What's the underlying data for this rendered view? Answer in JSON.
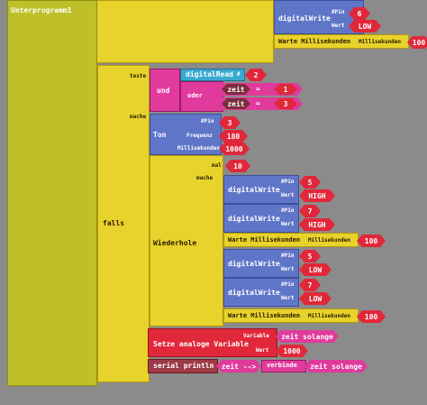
{
  "labels": {
    "unterprogramm": "Unterprogramm1",
    "falls": "falls",
    "teste": "teste",
    "mache": "mache",
    "und": "und",
    "oder": "oder",
    "digital_read": "digitalRead",
    "digital_read_hash": "#",
    "ton": "Ton",
    "pin": "#Pin",
    "frequenz": "Frequenz",
    "millisekunden": "Millisekunden",
    "mal": "mal",
    "wiederhole": "Wiederhole",
    "anweisung": "mache",
    "digital_write": "digitalWrite",
    "wert": "Wert",
    "warte": "Warte Millisekunden",
    "setze": "Setze analoge Variable",
    "variable": "Variable",
    "serial": "serial println",
    "verbinde": "verbinde"
  },
  "top": {
    "dw_pin": "6",
    "dw_wert": "LOW",
    "warte_ms": "100"
  },
  "condition": {
    "dr_pin": "2",
    "var1": "zeit",
    "op1": "=",
    "val1": "1",
    "var2": "zeit",
    "op2": "=",
    "val2": "3"
  },
  "ton": {
    "pin": "3",
    "frequenz": "180",
    "ms": "1000"
  },
  "repeat": {
    "count": "10"
  },
  "loop": [
    {
      "pin": "5",
      "wert": "HIGH"
    },
    {
      "pin": "7",
      "wert": "HIGH"
    },
    {
      "warte": "100"
    },
    {
      "pin": "5",
      "wert": "LOW"
    },
    {
      "pin": "7",
      "wert": "LOW"
    },
    {
      "warte": "100"
    }
  ],
  "setze": {
    "variable": "zeit solange",
    "wert": "1000"
  },
  "serial": {
    "arg1": "zeit -->",
    "arg2": "zeit solange"
  }
}
